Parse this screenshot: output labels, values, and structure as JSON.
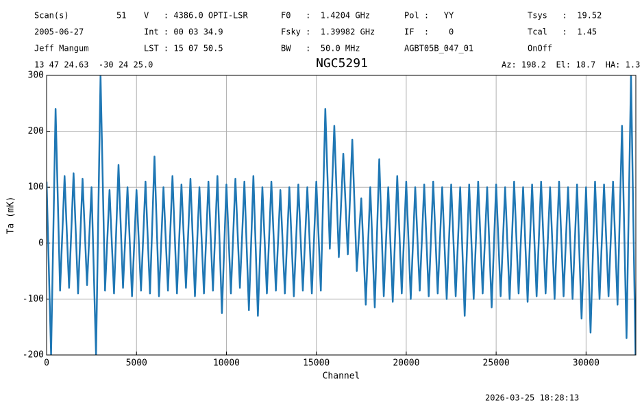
{
  "chart_data": {
    "type": "line",
    "title": "NGC5291",
    "header": [
      [
        "Scan(s)",
        "51",
        "V   : 4386.0 OPTI-LSR",
        "F0   :  1.4204 GHz",
        "Pol :   YY",
        "Tsys   :  19.52"
      ],
      [
        "2005-06-27",
        "Int : 00 03 34.9",
        "Fsky :  1.39982 GHz",
        "IF  :    0",
        "Tcal   :  1.45"
      ],
      [
        "Jeff Mangum",
        "LST : 15 07 50.5",
        "BW   :  50.0 MHz",
        "AGBT05B_047_01",
        "OnOff"
      ]
    ],
    "coordinates": "13 47 24.63  -30 24 25.0",
    "pointing": "Az: 198.2  El: 18.7  HA: 1.3",
    "timestamp": "2026-03-25 18:28:13",
    "xlabel": "Channel",
    "ylabel": "Ta (mK)",
    "color": "#1f77b4",
    "grid": true,
    "xlim": [
      0,
      32768
    ],
    "xticks": [
      0,
      5000,
      10000,
      15000,
      20000,
      25000,
      30000
    ],
    "ylim": [
      -200,
      300
    ],
    "yticks": [
      -200,
      -100,
      0,
      100,
      200,
      300
    ],
    "x": [
      0,
      250,
      500,
      750,
      1000,
      1250,
      1500,
      1750,
      2000,
      2250,
      2500,
      2750,
      3000,
      3250,
      3500,
      3750,
      4000,
      4250,
      4500,
      4750,
      5000,
      5250,
      5500,
      5750,
      6000,
      6250,
      6500,
      6750,
      7000,
      7250,
      7500,
      7750,
      8000,
      8250,
      8500,
      8750,
      9000,
      9250,
      9500,
      9750,
      10000,
      10250,
      10500,
      10750,
      11000,
      11250,
      11500,
      11750,
      12000,
      12250,
      12500,
      12750,
      13000,
      13250,
      13500,
      13750,
      14000,
      14250,
      14500,
      14750,
      15000,
      15250,
      15500,
      15750,
      16000,
      16250,
      16500,
      16750,
      17000,
      17250,
      17500,
      17750,
      18000,
      18250,
      18500,
      18750,
      19000,
      19250,
      19500,
      19750,
      20000,
      20250,
      20500,
      20750,
      21000,
      21250,
      21500,
      21750,
      22000,
      22250,
      22500,
      22750,
      23000,
      23250,
      23500,
      23750,
      24000,
      24250,
      24500,
      24750,
      25000,
      25250,
      25500,
      25750,
      26000,
      26250,
      26500,
      26750,
      27000,
      27250,
      27500,
      27750,
      28000,
      28250,
      28500,
      28750,
      29000,
      29250,
      29500,
      29750,
      30000,
      30250,
      30500,
      30750,
      31000,
      31250,
      31500,
      31750,
      32000,
      32250,
      32500,
      32750
    ],
    "values": [
      110,
      -200,
      240,
      -85,
      120,
      -80,
      125,
      -90,
      115,
      -75,
      100,
      -200,
      300,
      -85,
      95,
      -90,
      140,
      -80,
      100,
      -95,
      95,
      -85,
      110,
      -90,
      155,
      -95,
      100,
      -85,
      120,
      -90,
      105,
      -80,
      115,
      -95,
      100,
      -90,
      110,
      -85,
      120,
      -125,
      105,
      -90,
      115,
      -80,
      110,
      -120,
      120,
      -130,
      100,
      -90,
      110,
      -85,
      95,
      -90,
      100,
      -95,
      105,
      -85,
      100,
      -90,
      110,
      -85,
      240,
      -10,
      210,
      -25,
      160,
      -20,
      185,
      -50,
      80,
      -110,
      100,
      -115,
      150,
      -95,
      100,
      -105,
      120,
      -90,
      110,
      -100,
      100,
      -85,
      105,
      -95,
      110,
      -90,
      100,
      -100,
      105,
      -95,
      100,
      -130,
      105,
      -100,
      110,
      -90,
      100,
      -115,
      105,
      -95,
      100,
      -100,
      110,
      -90,
      100,
      -105,
      105,
      -95,
      110,
      -90,
      100,
      -100,
      110,
      -95,
      100,
      -100,
      105,
      -135,
      100,
      -160,
      110,
      -100,
      105,
      -95,
      110,
      -110,
      210,
      -170,
      300,
      -200
    ]
  }
}
